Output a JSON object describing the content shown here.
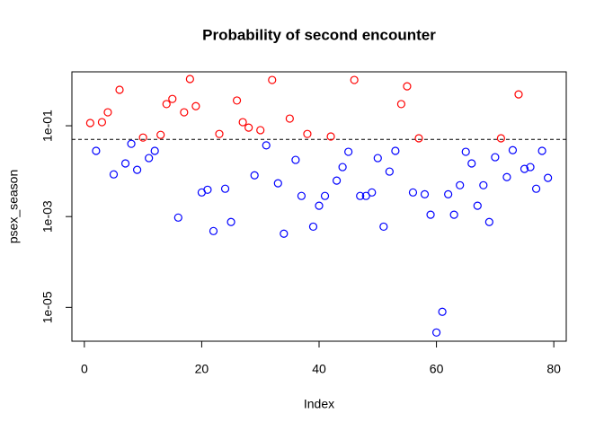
{
  "chart_data": {
    "type": "scatter",
    "title": "Probability of second encounter",
    "xlabel": "Index",
    "ylabel": "psex_season",
    "log_y": true,
    "xlim": [
      -2.12,
      82.12
    ],
    "ylim": [
      1.8e-06,
      1.54
    ],
    "xticks": [
      0,
      20,
      40,
      60,
      80
    ],
    "yticks": [
      {
        "value": 0.1,
        "label": "1e-01"
      },
      {
        "value": 0.001,
        "label": "1e-03"
      },
      {
        "value": 1e-05,
        "label": "1e-05"
      }
    ],
    "hline": 0.05,
    "series": [
      {
        "color": "#ff0000",
        "x": [
          1,
          3,
          4,
          6,
          10,
          13,
          14,
          15,
          17,
          18,
          19,
          23,
          26,
          27,
          28,
          30,
          32,
          35,
          38,
          42,
          46,
          54,
          55,
          57,
          71,
          74
        ],
        "values": [
          0.115,
          0.12,
          0.198,
          0.62,
          0.055,
          0.063,
          0.3,
          0.39,
          0.198,
          1.07,
          0.27,
          0.066,
          0.36,
          0.12,
          0.091,
          0.08,
          1.02,
          0.144,
          0.066,
          0.058,
          1.02,
          0.3,
          0.74,
          0.053,
          0.053,
          0.49
        ]
      },
      {
        "color": "#0000ff",
        "x": [
          2,
          5,
          7,
          8,
          9,
          11,
          12,
          16,
          20,
          21,
          22,
          24,
          25,
          29,
          31,
          33,
          34,
          36,
          37,
          39,
          40,
          41,
          43,
          44,
          45,
          47,
          48,
          49,
          50,
          51,
          52,
          53,
          56,
          58,
          59,
          60,
          61,
          62,
          63,
          64,
          65,
          66,
          67,
          68,
          69,
          70,
          72,
          73,
          75,
          76,
          77,
          78,
          79
        ],
        "values": [
          0.028,
          0.0085,
          0.0148,
          0.04,
          0.0107,
          0.0194,
          0.028,
          0.00095,
          0.0034,
          0.0039,
          0.00048,
          0.0041,
          0.00076,
          0.0081,
          0.037,
          0.0054,
          0.00042,
          0.0177,
          0.00285,
          0.0006,
          0.00173,
          0.00285,
          0.0062,
          0.0123,
          0.0267,
          0.00285,
          0.00285,
          0.0034,
          0.0194,
          0.0006,
          0.0098,
          0.028,
          0.0034,
          0.0031,
          0.0011,
          2.8e-06,
          8e-06,
          0.0031,
          0.0011,
          0.0049,
          0.0267,
          0.0148,
          0.00173,
          0.0049,
          0.00076,
          0.0203,
          0.0074,
          0.029,
          0.0112,
          0.0123,
          0.0041,
          0.028,
          0.0071
        ]
      }
    ]
  }
}
